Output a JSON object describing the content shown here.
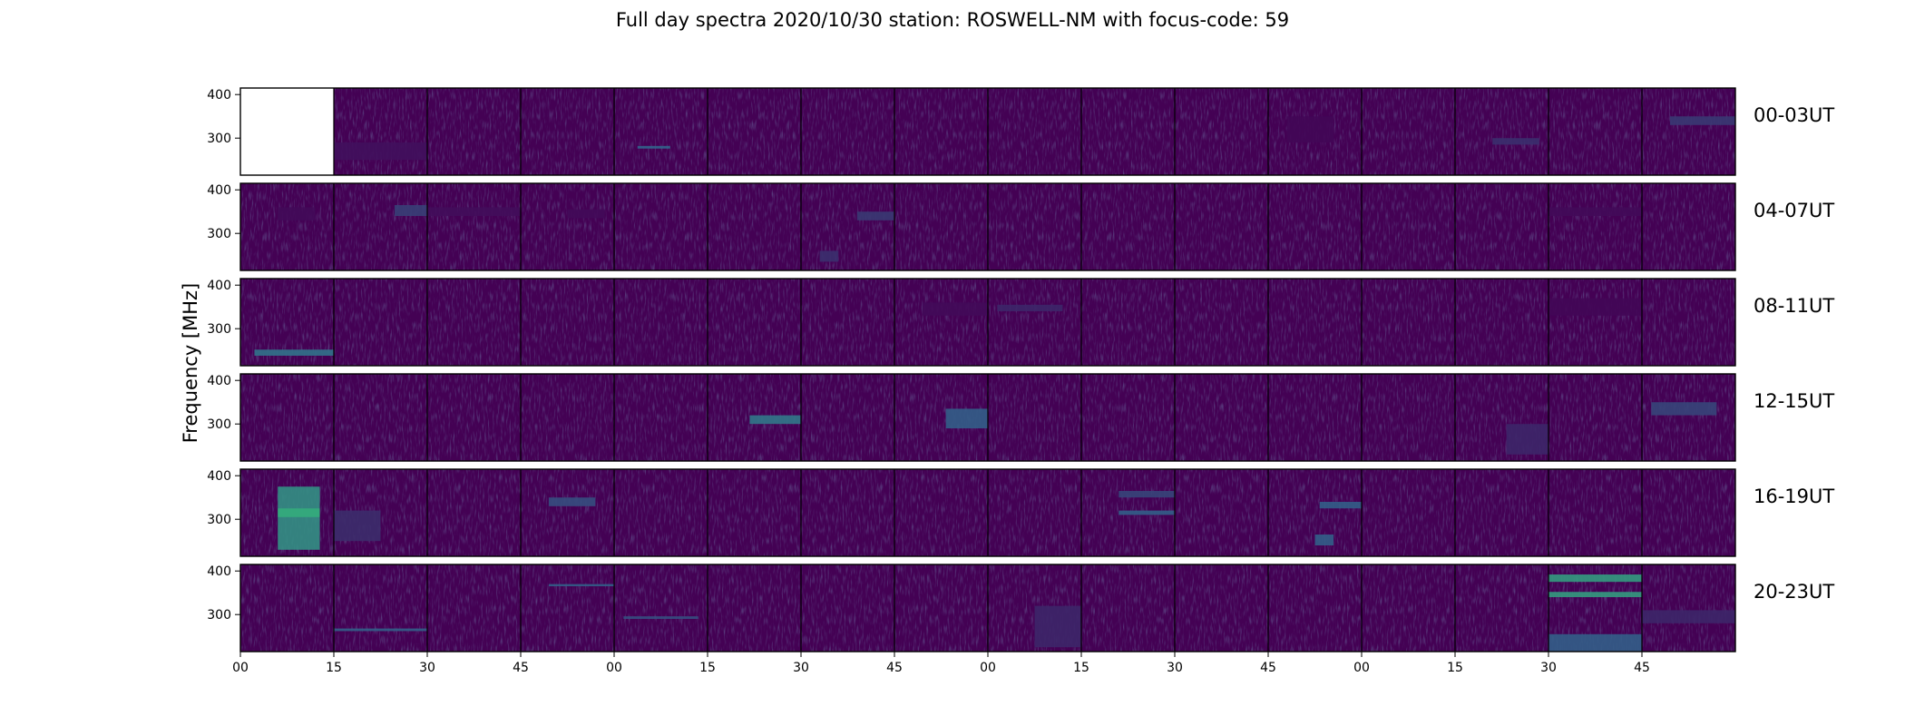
{
  "chart_data": {
    "type": "heatmap",
    "title": "Full day spectra 2020/10/30 station: ROSWELL-NM with focus-code: 59",
    "ylabel": "Frequency [MHz]",
    "xlabel": "",
    "colormap": "viridis",
    "colors": {
      "background": "#ffffff",
      "base": "#440154",
      "mid": "#31688e",
      "high": "#35b779",
      "peak": "#fde725",
      "frame": "#000000"
    },
    "rows": [
      "00-03UT",
      "04-07UT",
      "08-11UT",
      "12-15UT",
      "16-19UT",
      "20-23UT"
    ],
    "panels_per_row": 16,
    "panel_minutes": 15,
    "ylim": [
      215,
      415
    ],
    "y_ticks": [
      300,
      400
    ],
    "x_tick_labels": [
      "00",
      "15",
      "30",
      "45",
      "00",
      "15",
      "30",
      "45",
      "00",
      "15",
      "30",
      "45",
      "00",
      "15",
      "30",
      "45"
    ],
    "empty_panels": [
      [
        0,
        0
      ]
    ],
    "features": [
      {
        "row": 0,
        "panel": 1,
        "f0": 250,
        "f1": 290,
        "t0": 0.0,
        "t1": 1.0,
        "level": 0.05
      },
      {
        "row": 0,
        "panel": 4,
        "f0": 276,
        "f1": 282,
        "t0": 0.25,
        "t1": 0.6,
        "level": 0.32
      },
      {
        "row": 0,
        "panel": 11,
        "f0": 290,
        "f1": 350,
        "t0": 0.2,
        "t1": 0.7,
        "level": 0.02
      },
      {
        "row": 0,
        "panel": 13,
        "f0": 285,
        "f1": 300,
        "t0": 0.4,
        "t1": 0.9,
        "level": 0.15
      },
      {
        "row": 0,
        "panel": 15,
        "f0": 330,
        "f1": 350,
        "t0": 0.3,
        "t1": 1.0,
        "level": 0.18
      },
      {
        "row": 1,
        "panel": 0,
        "f0": 330,
        "f1": 360,
        "t0": 0.4,
        "t1": 0.8,
        "level": 0.03
      },
      {
        "row": 1,
        "panel": 1,
        "f0": 340,
        "f1": 365,
        "t0": 0.65,
        "t1": 1.0,
        "level": 0.2
      },
      {
        "row": 1,
        "panel": 2,
        "f0": 340,
        "f1": 360,
        "t0": 0.0,
        "t1": 1.0,
        "level": 0.04
      },
      {
        "row": 1,
        "panel": 3,
        "f0": 335,
        "f1": 355,
        "t0": 0.5,
        "t1": 0.9,
        "level": 0.03
      },
      {
        "row": 1,
        "panel": 6,
        "f0": 330,
        "f1": 350,
        "t0": 0.6,
        "t1": 1.0,
        "level": 0.18
      },
      {
        "row": 1,
        "panel": 6,
        "f0": 235,
        "f1": 260,
        "t0": 0.2,
        "t1": 0.4,
        "level": 0.15
      },
      {
        "row": 1,
        "panel": 14,
        "f0": 340,
        "f1": 360,
        "t0": 0.0,
        "t1": 1.0,
        "level": 0.03
      },
      {
        "row": 2,
        "panel": 0,
        "f0": 238,
        "f1": 252,
        "t0": 0.15,
        "t1": 1.0,
        "level": 0.38
      },
      {
        "row": 2,
        "panel": 7,
        "f0": 330,
        "f1": 360,
        "t0": 0.3,
        "t1": 1.0,
        "level": 0.03
      },
      {
        "row": 2,
        "panel": 8,
        "f0": 340,
        "f1": 355,
        "t0": 0.1,
        "t1": 0.8,
        "level": 0.12
      },
      {
        "row": 2,
        "panel": 14,
        "f0": 330,
        "f1": 370,
        "t0": 0.0,
        "t1": 1.0,
        "level": 0.02
      },
      {
        "row": 3,
        "panel": 5,
        "f0": 300,
        "f1": 320,
        "t0": 0.45,
        "t1": 1.0,
        "level": 0.4
      },
      {
        "row": 3,
        "panel": 7,
        "f0": 290,
        "f1": 335,
        "t0": 0.55,
        "t1": 1.0,
        "level": 0.3
      },
      {
        "row": 3,
        "panel": 13,
        "f0": 230,
        "f1": 300,
        "t0": 0.55,
        "t1": 1.0,
        "level": 0.12
      },
      {
        "row": 3,
        "panel": 15,
        "f0": 320,
        "f1": 350,
        "t0": 0.1,
        "t1": 0.8,
        "level": 0.22
      },
      {
        "row": 4,
        "panel": 0,
        "f0": 230,
        "f1": 375,
        "t0": 0.4,
        "t1": 0.85,
        "level": 0.5
      },
      {
        "row": 4,
        "panel": 0,
        "f0": 305,
        "f1": 325,
        "t0": 0.4,
        "t1": 0.85,
        "level": 0.62
      },
      {
        "row": 4,
        "panel": 1,
        "f0": 250,
        "f1": 320,
        "t0": 0.0,
        "t1": 0.5,
        "level": 0.14
      },
      {
        "row": 4,
        "panel": 3,
        "f0": 330,
        "f1": 350,
        "t0": 0.3,
        "t1": 0.8,
        "level": 0.25
      },
      {
        "row": 4,
        "panel": 9,
        "f0": 310,
        "f1": 320,
        "t0": 0.4,
        "t1": 1.0,
        "level": 0.3
      },
      {
        "row": 4,
        "panel": 9,
        "f0": 350,
        "f1": 365,
        "t0": 0.4,
        "t1": 1.0,
        "level": 0.22
      },
      {
        "row": 4,
        "panel": 11,
        "f0": 325,
        "f1": 340,
        "t0": 0.55,
        "t1": 1.0,
        "level": 0.3
      },
      {
        "row": 4,
        "panel": 11,
        "f0": 240,
        "f1": 265,
        "t0": 0.5,
        "t1": 0.7,
        "level": 0.3
      },
      {
        "row": 5,
        "panel": 1,
        "f0": 262,
        "f1": 268,
        "t0": 0.0,
        "t1": 1.0,
        "level": 0.3
      },
      {
        "row": 5,
        "panel": 3,
        "f0": 365,
        "f1": 370,
        "t0": 0.3,
        "t1": 1.0,
        "level": 0.3
      },
      {
        "row": 5,
        "panel": 4,
        "f0": 290,
        "f1": 296,
        "t0": 0.1,
        "t1": 0.9,
        "level": 0.25
      },
      {
        "row": 5,
        "panel": 8,
        "f0": 225,
        "f1": 320,
        "t0": 0.5,
        "t1": 1.0,
        "level": 0.12
      },
      {
        "row": 5,
        "panel": 14,
        "f0": 375,
        "f1": 392,
        "t0": 0.0,
        "t1": 1.0,
        "level": 0.55
      },
      {
        "row": 5,
        "panel": 14,
        "f0": 340,
        "f1": 352,
        "t0": 0.0,
        "t1": 1.0,
        "level": 0.55
      },
      {
        "row": 5,
        "panel": 14,
        "f0": 215,
        "f1": 255,
        "t0": 0.0,
        "t1": 1.0,
        "level": 0.3
      },
      {
        "row": 5,
        "panel": 15,
        "f0": 280,
        "f1": 310,
        "t0": 0.0,
        "t1": 1.0,
        "level": 0.12
      }
    ]
  }
}
